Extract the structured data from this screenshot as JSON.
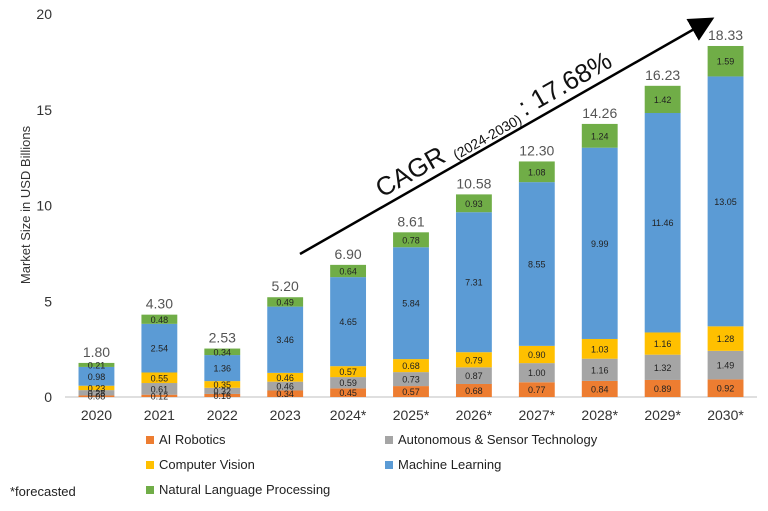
{
  "chart_data": {
    "type": "bar",
    "stacked": true,
    "title": "",
    "xlabel": "",
    "ylabel": "Market Size in USD Billions",
    "ylim": [
      0,
      20
    ],
    "yticks": [
      0,
      5,
      10,
      15,
      20
    ],
    "categories": [
      "2020",
      "2021",
      "2022",
      "2023",
      "2024*",
      "2025*",
      "2026*",
      "2027*",
      "2028*",
      "2029*",
      "2030*"
    ],
    "series": [
      {
        "name": "AI Robotics",
        "color": "#ED7D31",
        "values": [
          0.08,
          0.12,
          0.16,
          0.34,
          0.45,
          0.57,
          0.68,
          0.77,
          0.84,
          0.89,
          0.92
        ]
      },
      {
        "name": "Autonomous & Sensor Technology",
        "color": "#A5A5A5",
        "values": [
          0.28,
          0.61,
          0.32,
          0.46,
          0.59,
          0.73,
          0.87,
          1.0,
          1.16,
          1.32,
          1.49
        ]
      },
      {
        "name": "Computer Vision",
        "color": "#FFC000",
        "values": [
          0.23,
          0.55,
          0.35,
          0.46,
          0.57,
          0.68,
          0.79,
          0.9,
          1.03,
          1.16,
          1.28
        ]
      },
      {
        "name": "Machine Learning",
        "color": "#5B9BD5",
        "values": [
          0.98,
          2.54,
          1.36,
          3.46,
          4.65,
          5.84,
          7.31,
          8.55,
          9.99,
          11.46,
          13.05
        ]
      },
      {
        "name": "Natural Language Processing",
        "color": "#70AD47",
        "values": [
          0.21,
          0.48,
          0.34,
          0.49,
          0.64,
          0.78,
          0.93,
          1.08,
          1.24,
          1.42,
          1.59
        ]
      }
    ],
    "segment_labels": [
      [
        "0.08",
        "0.12",
        "0.16",
        "0.34",
        "0.45",
        "0.57",
        "0.68",
        "0.77",
        "0.84",
        "0.89",
        "0.92"
      ],
      [
        "0.28",
        "0.61",
        "0.32",
        "0.46",
        "0.59",
        "0.73",
        "0.87",
        "1.00",
        "1.16",
        "1.32",
        "1.49"
      ],
      [
        "0.23",
        "0.55",
        "0.35",
        "0.46",
        "0.57",
        "0.68",
        "0.79",
        "0.90",
        "1.03",
        "1.16",
        "1.28"
      ],
      [
        "0.98",
        "2.54",
        "1.36",
        "3.46",
        "4.65",
        "5.84",
        "7.31",
        "8.55",
        "9.99",
        "11.46",
        "13.05"
      ],
      [
        "0.21",
        "0.48",
        "0.34",
        "0.49",
        "0.64",
        "0.78",
        "0.93",
        "1.08",
        "1.24",
        "1.42",
        "1.59"
      ]
    ],
    "totals": [
      "1.80",
      "4.30",
      "2.53",
      "5.20",
      "6.90",
      "8.61",
      "10.58",
      "12.30",
      "14.26",
      "16.23",
      "18.33"
    ],
    "annotation": {
      "main": "CAGR",
      "sub": "(2024-2030)",
      "value": ": 17.68%"
    },
    "legend_position": "bottom",
    "footnote": "*forecasted"
  }
}
